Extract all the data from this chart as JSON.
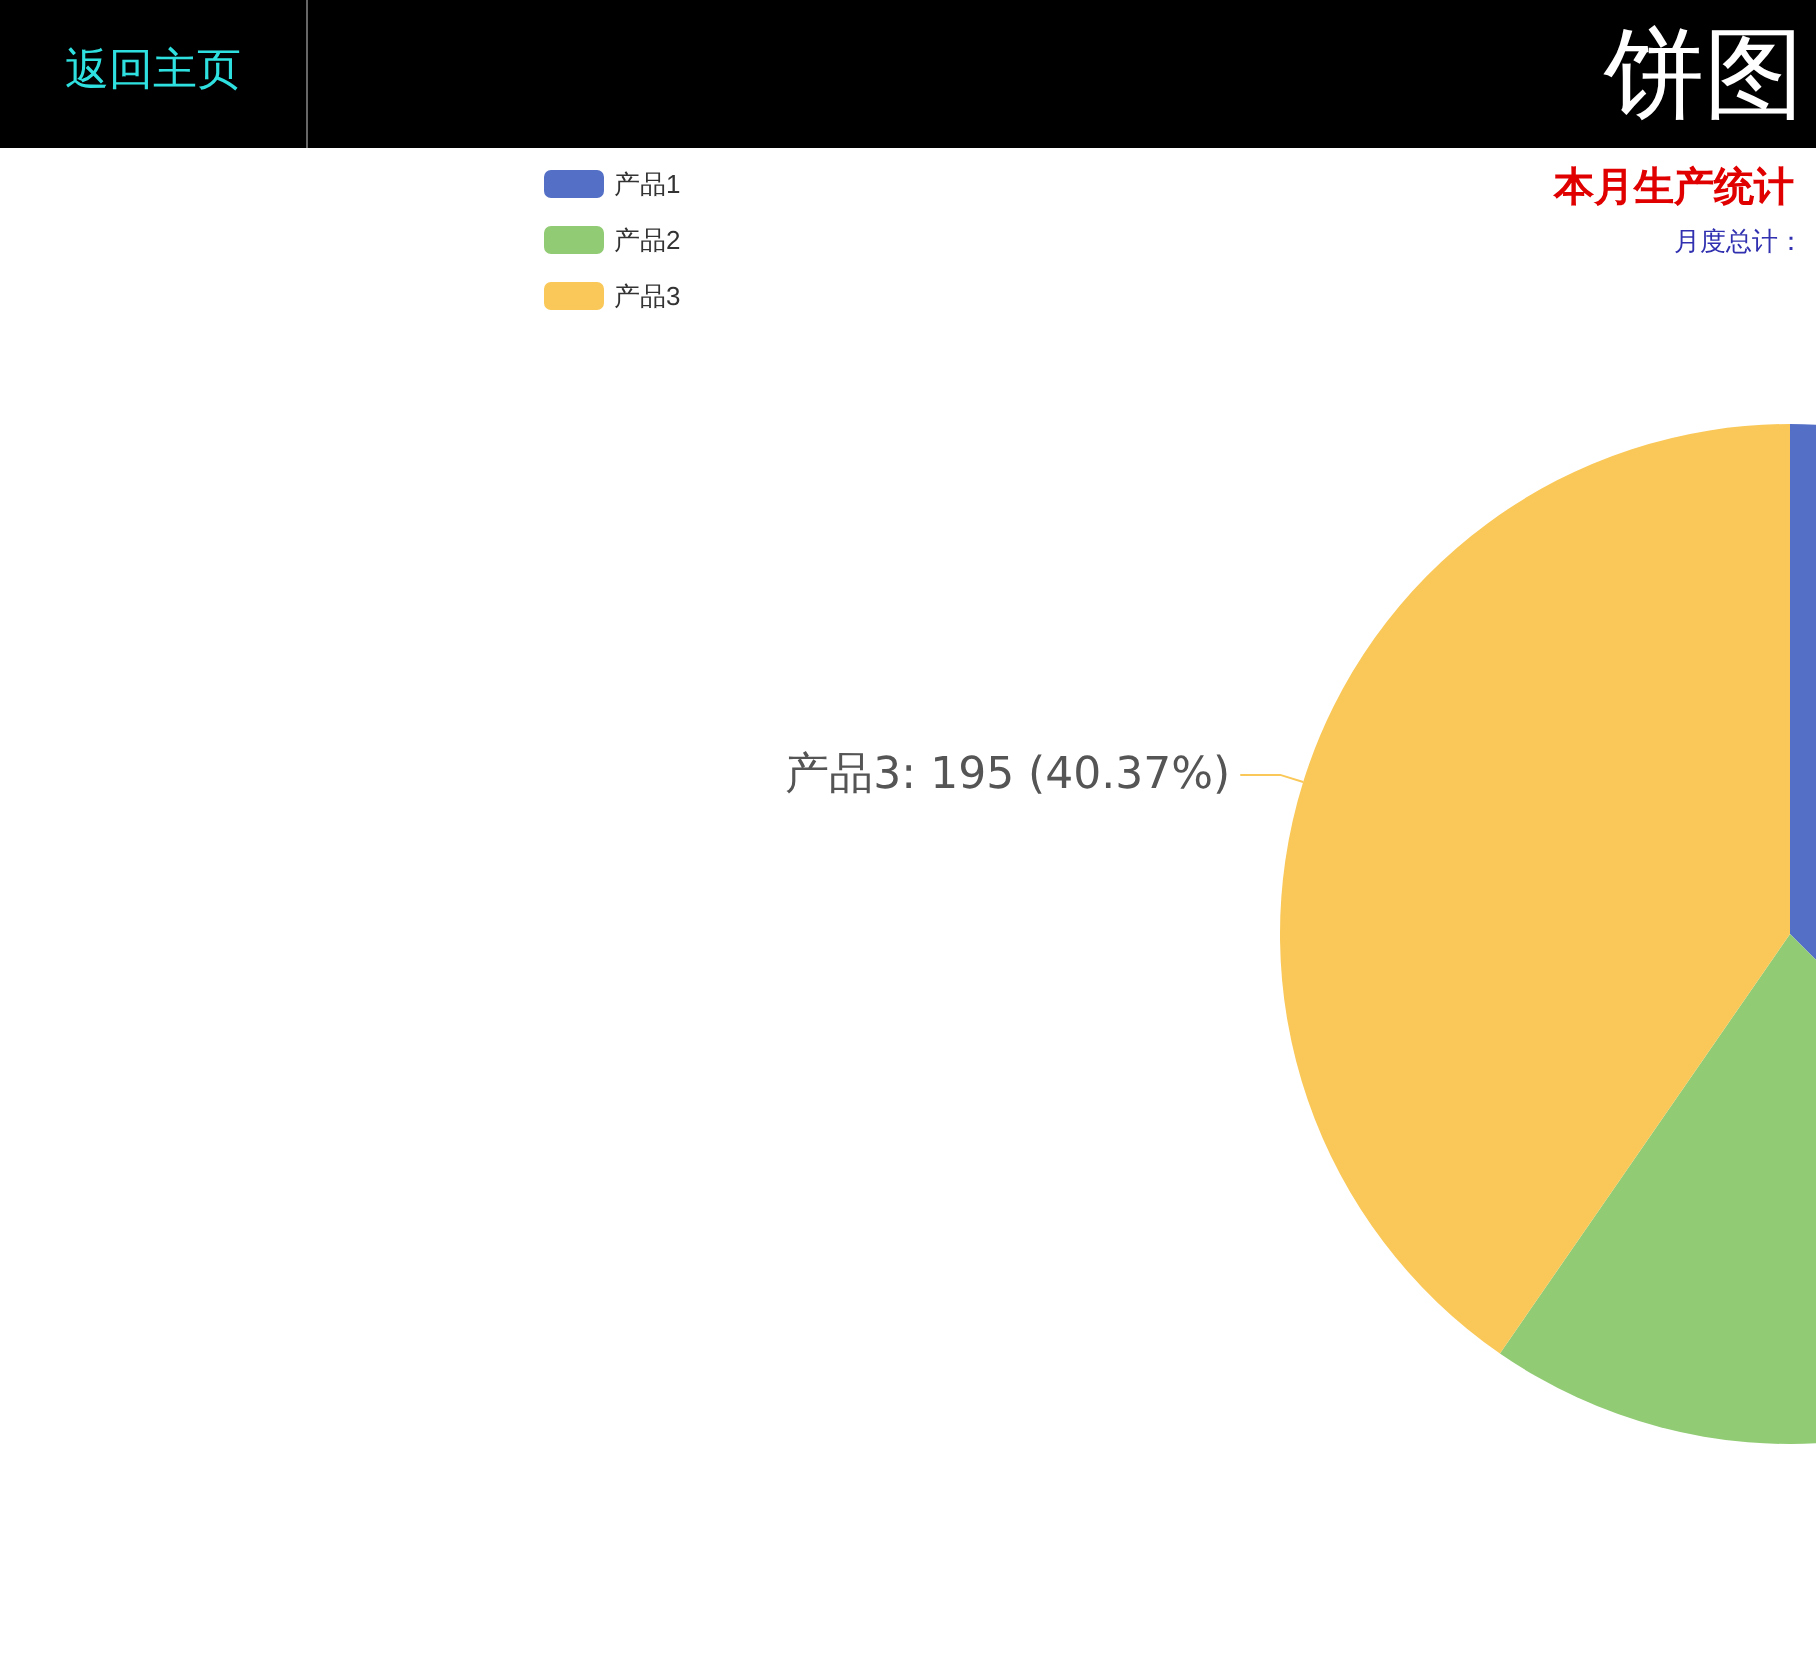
{
  "chart_data": {
    "type": "pie",
    "title": "饼图",
    "subtitle": "本月生产统计",
    "annotations": [
      "返回主页",
      "月度总计："
    ],
    "categories": [
      "产品1",
      "产品2",
      "产品3"
    ],
    "values": [
      37.47,
      22.16,
      40.37
    ],
    "value_labels": [
      null,
      null,
      "产品3: 195 (40.37%)"
    ],
    "colors": [
      "#5470c6",
      "#91cc75",
      "#fac858"
    ],
    "legend": "top left"
  }
}
